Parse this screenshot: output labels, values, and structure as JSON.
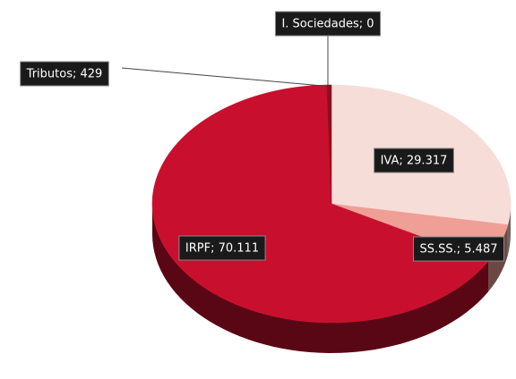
{
  "chart_data": {
    "type": "pie",
    "slices": [
      "I. Sociedades",
      "IVA",
      "SS.SS.",
      "IRPF",
      "Tributos"
    ],
    "values": [
      0,
      29317,
      5487,
      70111,
      429
    ],
    "value_labels": [
      "I. Sociedades; 0",
      "IVA; 29.317",
      "SS.SS.; 5.487",
      "IRPF; 70.111",
      "Tributos; 429"
    ],
    "colors": [
      "#e8c8c4",
      "#f6ddd8",
      "#ef9f96",
      "#c8102e",
      "#8a1020"
    ],
    "start_angle": 0,
    "direction": "clockwise",
    "three_d": true
  }
}
